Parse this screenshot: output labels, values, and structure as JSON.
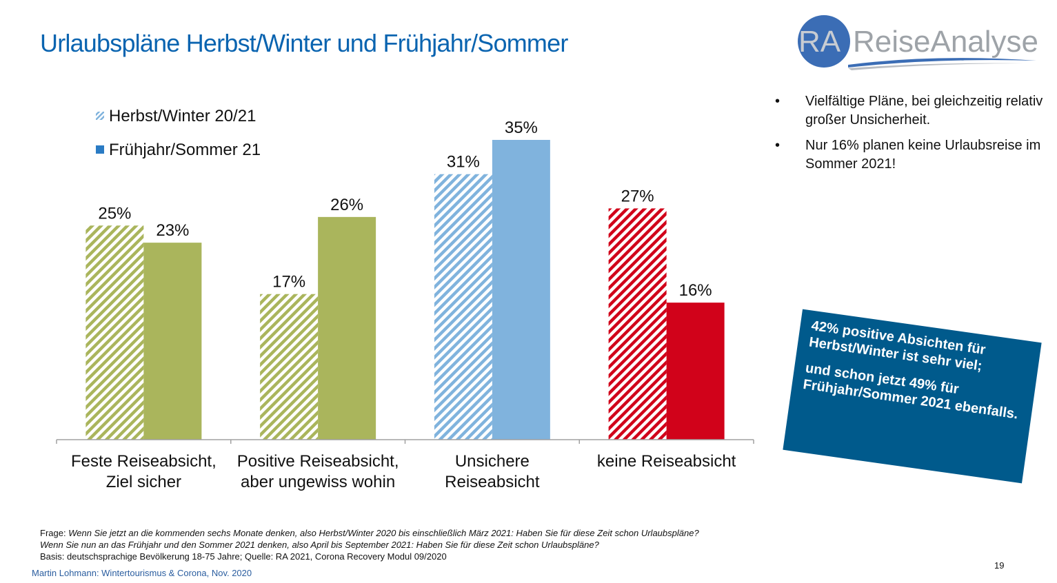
{
  "title": "Urlaubspläne Herbst/Winter und Frühjahr/Sommer",
  "logo": {
    "mark": "RA",
    "text": "ReiseAnalyse"
  },
  "bullets": [
    "Vielfältige Pläne, bei gleichzeitig relativ großer Unsicherheit.",
    "Nur 16% planen keine Urlaubsreise im Sommer 2021!"
  ],
  "bullet_symbol": "•",
  "callout": {
    "line1": "42% positive Absichten für Herbst/Winter ist sehr viel;",
    "line2": "und schon jetzt 49% für Frühjahr/Sommer 2021 ebenfalls.",
    "color": "#005a8c"
  },
  "chart_data": {
    "type": "bar",
    "categories": [
      [
        "Feste Reiseabsicht,",
        "Ziel sicher"
      ],
      [
        "Positive Reiseabsicht,",
        "aber ungewiss wohin"
      ],
      [
        "Unsichere",
        "Reiseabsicht"
      ],
      [
        "keine Reiseabsicht"
      ]
    ],
    "series": [
      {
        "name": "Herbst/Winter  20/21",
        "style": "hatched",
        "values": [
          25,
          17,
          31,
          27
        ],
        "labels": [
          "25%",
          "17%",
          "31%",
          "27%"
        ]
      },
      {
        "name": "Frühjahr/Sommer 21",
        "style": "solid",
        "values": [
          23,
          26,
          35,
          16
        ],
        "labels": [
          "23%",
          "26%",
          "35%",
          "16%"
        ]
      }
    ],
    "category_colors": [
      "#aab55c",
      "#aab55c",
      "#80b3dd",
      "#d1021a"
    ],
    "legend_placement": "top-left",
    "ylim": [
      0,
      35
    ],
    "grid": false
  },
  "footer": {
    "frage_label": "Frage:",
    "frage1": "Wenn Sie jetzt an die kommenden sechs Monate denken, also Herbst/Winter 2020 bis einschließlich März 2021: Haben Sie für diese Zeit schon Urlaubspläne?",
    "frage2": "Wenn Sie nun an das Frühjahr und den Sommer 2021 denken, also April bis September 2021: Haben Sie für diese Zeit schon Urlaubspläne?",
    "basis": "Basis: deutschsprachige Bevölkerung 18-75 Jahre; Quelle: RA 2021, Corona Recovery Modul 09/2020",
    "author": "Martin Lohmann: Wintertourismus & Corona, Nov.  2020",
    "page": "19"
  }
}
